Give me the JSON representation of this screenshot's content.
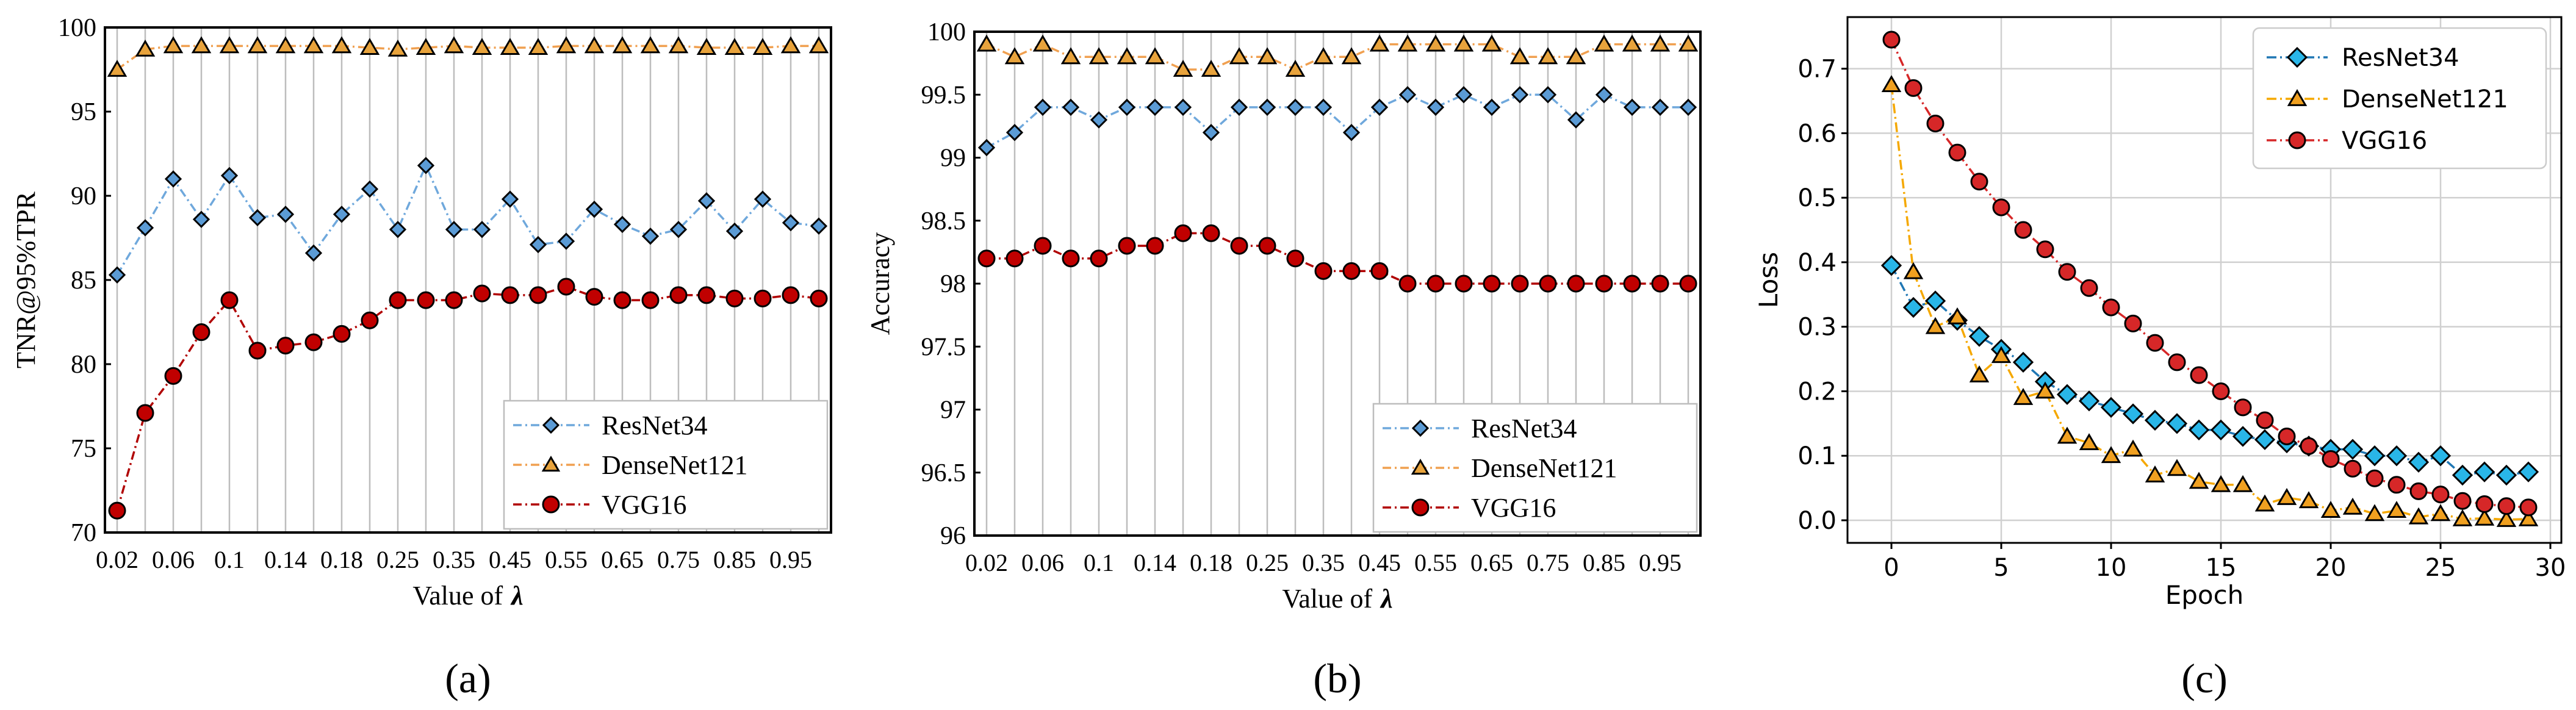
{
  "chart_data": [
    {
      "id": "a",
      "type": "line",
      "panel_label": "(a)",
      "xlabel_text": "Value of",
      "xlabel_symbol": "λ",
      "ylabel": "TNR@95%TPR",
      "ylim": [
        70,
        100
      ],
      "yticks": [
        "70",
        "75",
        "80",
        "85",
        "90",
        "95",
        "100"
      ],
      "categories": [
        "0.02",
        "0.04",
        "0.06",
        "0.08",
        "0.1",
        "0.12",
        "0.14",
        "0.16",
        "0.18",
        "0.2",
        "0.25",
        "0.3",
        "0.35",
        "0.4",
        "0.45",
        "0.5",
        "0.55",
        "0.6",
        "0.65",
        "0.7",
        "0.75",
        "0.8",
        "0.85",
        "0.9",
        "0.95",
        "1.0"
      ],
      "xtick_labels": [
        "0.02",
        "0.06",
        "0.1",
        "0.14",
        "0.18",
        "0.25",
        "0.35",
        "0.45",
        "0.55",
        "0.65",
        "0.75",
        "0.85",
        "0.95"
      ],
      "grid": "vertical",
      "legend": "lower-right",
      "series": [
        {
          "name": "ResNet34",
          "marker": "diamond",
          "color": "#5b9bd5",
          "line_color": "#6fa8dc",
          "values": [
            85.3,
            88.1,
            91.0,
            88.6,
            91.2,
            88.7,
            88.9,
            86.6,
            88.9,
            90.4,
            88.0,
            91.8,
            88.0,
            88.0,
            89.8,
            87.1,
            87.3,
            89.2,
            88.3,
            87.6,
            88.0,
            89.7,
            87.9,
            89.8,
            88.4,
            88.2
          ]
        },
        {
          "name": "DenseNet121",
          "marker": "triangle",
          "color": "#e8a33c",
          "line_color": "#f0a050",
          "values": [
            97.5,
            98.7,
            98.9,
            98.9,
            98.9,
            98.9,
            98.9,
            98.9,
            98.9,
            98.8,
            98.7,
            98.8,
            98.9,
            98.8,
            98.8,
            98.8,
            98.9,
            98.9,
            98.9,
            98.9,
            98.9,
            98.8,
            98.8,
            98.8,
            98.9,
            98.9
          ]
        },
        {
          "name": "VGG16",
          "marker": "circle",
          "color": "#c00000",
          "line_color": "#b00000",
          "values": [
            71.3,
            77.1,
            79.3,
            81.9,
            83.8,
            80.8,
            81.1,
            81.3,
            81.8,
            82.6,
            83.8,
            83.8,
            83.8,
            84.2,
            84.1,
            84.1,
            84.6,
            84.0,
            83.8,
            83.8,
            84.1,
            84.1,
            83.9,
            83.9,
            84.1,
            83.9
          ]
        }
      ]
    },
    {
      "id": "b",
      "type": "line",
      "panel_label": "(b)",
      "xlabel_text": "Value of",
      "xlabel_symbol": "λ",
      "ylabel": "Accuracy",
      "ylim": [
        96,
        100
      ],
      "yticks": [
        "96",
        "96.5",
        "97",
        "97.5",
        "98",
        "98.5",
        "99",
        "99.5",
        "100"
      ],
      "categories": [
        "0.02",
        "0.04",
        "0.06",
        "0.08",
        "0.1",
        "0.12",
        "0.14",
        "0.16",
        "0.18",
        "0.2",
        "0.25",
        "0.3",
        "0.35",
        "0.4",
        "0.45",
        "0.5",
        "0.55",
        "0.6",
        "0.65",
        "0.7",
        "0.75",
        "0.8",
        "0.85",
        "0.9",
        "0.95",
        "1.0"
      ],
      "xtick_labels": [
        "0.02",
        "0.06",
        "0.1",
        "0.14",
        "0.18",
        "0.25",
        "0.35",
        "0.45",
        "0.55",
        "0.65",
        "0.75",
        "0.85",
        "0.95"
      ],
      "grid": "vertical",
      "legend": "lower-right",
      "series": [
        {
          "name": "ResNet34",
          "marker": "diamond",
          "color": "#5b9bd5",
          "line_color": "#6fa8dc",
          "values": [
            99.08,
            99.2,
            99.4,
            99.4,
            99.3,
            99.4,
            99.4,
            99.4,
            99.2,
            99.4,
            99.4,
            99.4,
            99.4,
            99.2,
            99.4,
            99.5,
            99.4,
            99.5,
            99.4,
            99.5,
            99.5,
            99.3,
            99.5,
            99.4,
            99.4,
            99.4
          ]
        },
        {
          "name": "DenseNet121",
          "marker": "triangle",
          "color": "#e8a33c",
          "line_color": "#f0a050",
          "values": [
            99.9,
            99.8,
            99.9,
            99.8,
            99.8,
            99.8,
            99.8,
            99.7,
            99.7,
            99.8,
            99.8,
            99.7,
            99.8,
            99.8,
            99.9,
            99.9,
            99.9,
            99.9,
            99.9,
            99.8,
            99.8,
            99.8,
            99.9,
            99.9,
            99.9,
            99.9
          ]
        },
        {
          "name": "VGG16",
          "marker": "circle",
          "color": "#c00000",
          "line_color": "#b00000",
          "values": [
            98.2,
            98.2,
            98.3,
            98.2,
            98.2,
            98.3,
            98.3,
            98.4,
            98.4,
            98.3,
            98.3,
            98.2,
            98.1,
            98.1,
            98.1,
            98.0,
            98.0,
            98.0,
            98.0,
            98.0,
            98.0,
            98.0,
            98.0,
            98.0,
            98.0,
            98.0
          ]
        }
      ]
    },
    {
      "id": "c",
      "type": "line",
      "panel_label": "(c)",
      "xlabel": "Epoch",
      "ylabel": "Loss",
      "xlim": [
        -2,
        30.5
      ],
      "ylim": [
        -0.035,
        0.78
      ],
      "xticks": [
        "0",
        "5",
        "10",
        "15",
        "20",
        "25",
        "30"
      ],
      "yticks": [
        "0.0",
        "0.1",
        "0.2",
        "0.3",
        "0.4",
        "0.5",
        "0.6",
        "0.7"
      ],
      "grid": "both",
      "legend": "upper-right",
      "series": [
        {
          "name": "ResNet34",
          "marker": "diamond",
          "color": "#29b6e8",
          "line_color": "#1f77b4",
          "x": [
            0,
            1,
            2,
            3,
            4,
            5,
            6,
            7,
            8,
            9,
            10,
            11,
            12,
            13,
            14,
            15,
            16,
            17,
            18,
            19,
            20,
            21,
            22,
            23,
            24,
            25,
            26,
            27,
            28,
            29
          ],
          "values": [
            0.395,
            0.33,
            0.34,
            0.31,
            0.285,
            0.265,
            0.245,
            0.215,
            0.195,
            0.185,
            0.175,
            0.165,
            0.155,
            0.15,
            0.14,
            0.14,
            0.13,
            0.125,
            0.12,
            0.115,
            0.11,
            0.11,
            0.1,
            0.1,
            0.09,
            0.1,
            0.07,
            0.075,
            0.07,
            0.075
          ]
        },
        {
          "name": "DenseNet121",
          "marker": "triangle",
          "color": "#f0a020",
          "line_color": "#f5a800",
          "x": [
            0,
            1,
            2,
            3,
            4,
            5,
            6,
            7,
            8,
            9,
            10,
            11,
            12,
            13,
            14,
            15,
            16,
            17,
            18,
            19,
            20,
            21,
            22,
            23,
            24,
            25,
            26,
            27,
            28,
            29
          ],
          "values": [
            0.675,
            0.385,
            0.3,
            0.315,
            0.225,
            0.255,
            0.19,
            0.2,
            0.13,
            0.12,
            0.1,
            0.11,
            0.07,
            0.08,
            0.06,
            0.055,
            0.055,
            0.025,
            0.035,
            0.03,
            0.015,
            0.02,
            0.01,
            0.015,
            0.005,
            0.01,
            0.002,
            0.003,
            0.001,
            0.002
          ]
        },
        {
          "name": "VGG16",
          "marker": "circle",
          "color": "#d62728",
          "line_color": "#d62728",
          "x": [
            0,
            1,
            2,
            3,
            4,
            5,
            6,
            7,
            8,
            9,
            10,
            11,
            12,
            13,
            14,
            15,
            16,
            17,
            18,
            19,
            20,
            21,
            22,
            23,
            24,
            25,
            26,
            27,
            28,
            29
          ],
          "values": [
            0.745,
            0.67,
            0.615,
            0.57,
            0.525,
            0.485,
            0.45,
            0.42,
            0.385,
            0.36,
            0.33,
            0.305,
            0.275,
            0.245,
            0.225,
            0.2,
            0.175,
            0.155,
            0.13,
            0.115,
            0.095,
            0.08,
            0.065,
            0.055,
            0.045,
            0.04,
            0.03,
            0.025,
            0.022,
            0.02
          ]
        }
      ]
    }
  ]
}
